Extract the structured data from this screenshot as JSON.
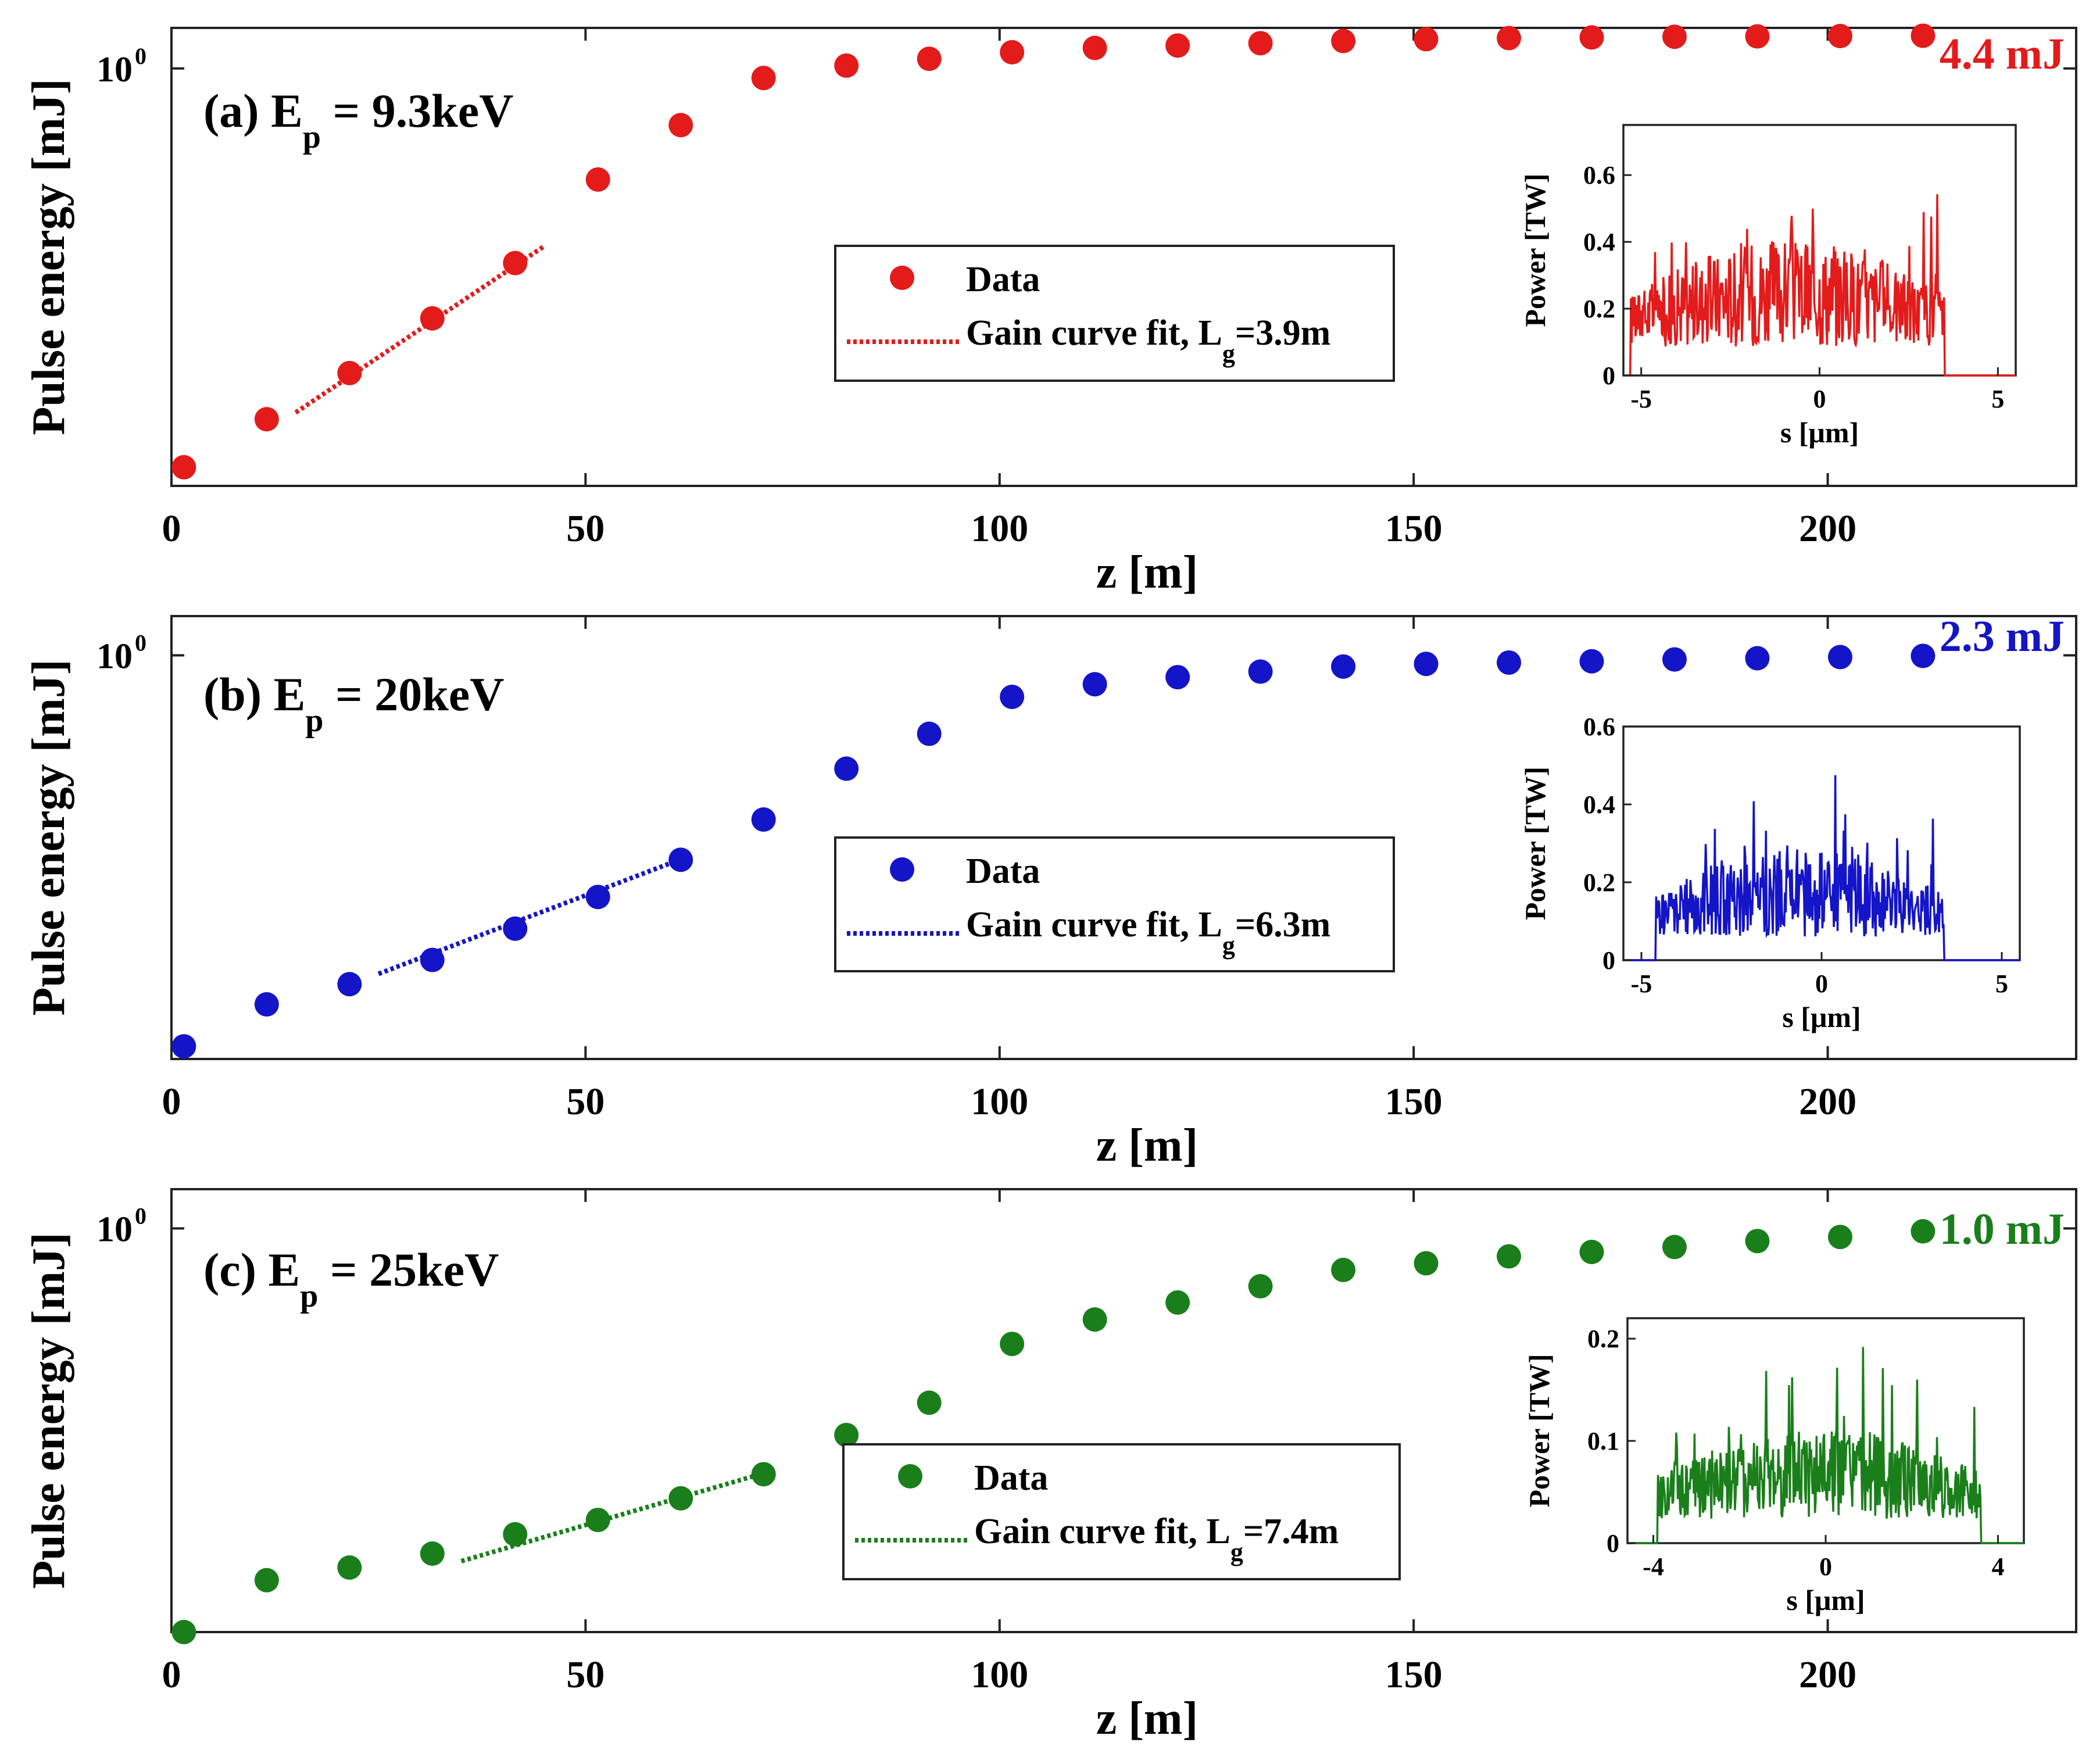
{
  "figure": {
    "colors": {
      "a": "#e31b1b",
      "b": "#1414c8",
      "c": "#1a7f1a",
      "axis": "#222222"
    }
  },
  "chart_data": [
    {
      "id": "a",
      "type": "scatter",
      "title": "(a) E",
      "title_sub": "p",
      "title_tail": " = 9.3keV",
      "energy_note": "4.4 mJ",
      "xlabel": "z [m]",
      "ylabel": "Pulse energy [mJ]",
      "yscale": "log",
      "xlim": [
        0,
        230
      ],
      "ylim": [
        0.0008,
        2.0
      ],
      "xticks": [
        0,
        50,
        100,
        150,
        200
      ],
      "xtick_labels": [
        "0",
        "50",
        "100",
        "150",
        "200"
      ],
      "ytick_base": "10",
      "ytick_exp": "0",
      "ytick_value": 1,
      "color": "#e31b1b",
      "series": [
        {
          "name": "Data",
          "x": [
            1.5,
            11.5,
            21.5,
            31.5,
            41.5,
            51.5,
            61.5,
            71.5,
            81.5,
            91.5,
            101.5,
            111.5,
            121.5,
            131.5,
            141.5,
            151.5,
            161.5,
            171.5,
            181.5,
            191.5,
            201.5,
            211.5
          ],
          "y": [
            0.0011,
            0.0025,
            0.0055,
            0.014,
            0.036,
            0.15,
            0.38,
            0.85,
            1.05,
            1.18,
            1.32,
            1.42,
            1.48,
            1.54,
            1.6,
            1.65,
            1.68,
            1.7,
            1.72,
            1.73,
            1.74,
            1.75
          ]
        }
      ],
      "fit": {
        "name": "Gain curve fit, L",
        "name_sub": "g",
        "name_tail": "=3.9m",
        "x": [
          15,
          45
        ],
        "y": [
          0.0028,
          0.048
        ]
      },
      "inset": {
        "xlabel": "s [μm]",
        "ylabel": "Power [TW]",
        "xlim": [
          -5.5,
          5.5
        ],
        "ylim": [
          0,
          0.75
        ],
        "xticks": [
          -5,
          0,
          5
        ],
        "xtick_labels": [
          "-5",
          "0",
          "5"
        ],
        "yticks": [
          0,
          0.2,
          0.4,
          0.6
        ],
        "ytick_labels": [
          "0",
          "0.2",
          "0.4",
          "0.6"
        ],
        "signal_range": [
          -5.3,
          3.5
        ],
        "peak": 0.72
      }
    },
    {
      "id": "b",
      "type": "scatter",
      "title": "(b) E",
      "title_sub": "p",
      "title_tail": " = 20keV",
      "energy_note": "2.3 mJ",
      "xlabel": "z [m]",
      "ylabel": "Pulse energy [mJ]",
      "yscale": "log",
      "xlim": [
        0,
        230
      ],
      "ylim": [
        0.0008,
        2.0
      ],
      "xticks": [
        0,
        50,
        100,
        150,
        200
      ],
      "xtick_labels": [
        "0",
        "50",
        "100",
        "150",
        "200"
      ],
      "ytick_base": "10",
      "ytick_exp": "0",
      "ytick_value": 1,
      "color": "#1414c8",
      "series": [
        {
          "name": "Data",
          "x": [
            1.5,
            11.5,
            21.5,
            31.5,
            41.5,
            51.5,
            61.5,
            71.5,
            81.5,
            91.5,
            101.5,
            111.5,
            121.5,
            131.5,
            141.5,
            151.5,
            161.5,
            171.5,
            181.5,
            191.5,
            201.5,
            211.5
          ],
          "y": [
            0.001,
            0.0021,
            0.003,
            0.0046,
            0.008,
            0.014,
            0.027,
            0.055,
            0.135,
            0.25,
            0.48,
            0.6,
            0.68,
            0.75,
            0.82,
            0.86,
            0.88,
            0.9,
            0.93,
            0.95,
            0.97,
            0.99
          ]
        }
      ],
      "fit": {
        "name": "Gain curve fit, L",
        "name_sub": "g",
        "name_tail": "=6.3m",
        "x": [
          25,
          62
        ],
        "y": [
          0.0036,
          0.028
        ]
      },
      "inset": {
        "xlabel": "s [μm]",
        "ylabel": "Power [TW]",
        "xlim": [
          -5.5,
          5.5
        ],
        "ylim": [
          0,
          0.6
        ],
        "xticks": [
          -5,
          0,
          5
        ],
        "xtick_labels": [
          "-5",
          "0",
          "5"
        ],
        "yticks": [
          0,
          0.2,
          0.4,
          0.6
        ],
        "ytick_labels": [
          "0",
          "0.2",
          "0.4",
          "0.6"
        ],
        "signal_range": [
          -4.6,
          3.4
        ],
        "peak": 0.5
      }
    },
    {
      "id": "c",
      "type": "scatter",
      "title": "(c) E",
      "title_sub": "p",
      "title_tail": " = 25keV",
      "energy_note": "1.0 mJ",
      "xlabel": "z [m]",
      "ylabel": "Pulse energy [mJ]",
      "yscale": "log",
      "xlim": [
        0,
        230
      ],
      "ylim": [
        0.0008,
        2.0
      ],
      "xticks": [
        0,
        50,
        100,
        150,
        200
      ],
      "xtick_labels": [
        "0",
        "50",
        "100",
        "150",
        "200"
      ],
      "ytick_base": "10",
      "ytick_exp": "0",
      "ytick_value": 1,
      "color": "#1a7f1a",
      "series": [
        {
          "name": "Data",
          "x": [
            1.5,
            11.5,
            21.5,
            31.5,
            41.5,
            51.5,
            61.5,
            71.5,
            81.5,
            91.5,
            101.5,
            111.5,
            121.5,
            131.5,
            141.5,
            151.5,
            161.5,
            171.5,
            181.5,
            191.5,
            201.5,
            211.5
          ],
          "y": [
            0.0008,
            0.002,
            0.0025,
            0.0032,
            0.0045,
            0.0058,
            0.0085,
            0.013,
            0.026,
            0.046,
            0.13,
            0.2,
            0.27,
            0.36,
            0.48,
            0.54,
            0.61,
            0.66,
            0.72,
            0.8,
            0.86,
            0.95
          ]
        }
      ],
      "fit": {
        "name": "Gain curve fit, L",
        "name_sub": "g",
        "name_tail": "=7.4m",
        "x": [
          35,
          72
        ],
        "y": [
          0.0028,
          0.0135
        ]
      },
      "inset": {
        "xlabel": "s [μm]",
        "ylabel": "Power [TW]",
        "xlim": [
          -4.6,
          4.6
        ],
        "ylim": [
          0,
          0.22
        ],
        "xticks": [
          -4,
          0,
          4
        ],
        "xtick_labels": [
          "-4",
          "0",
          "4"
        ],
        "yticks": [
          0,
          0.1,
          0.2
        ],
        "ytick_labels": [
          "0",
          "0.1",
          "0.2"
        ],
        "signal_range": [
          -3.9,
          3.6
        ],
        "peak": 0.2
      }
    }
  ]
}
